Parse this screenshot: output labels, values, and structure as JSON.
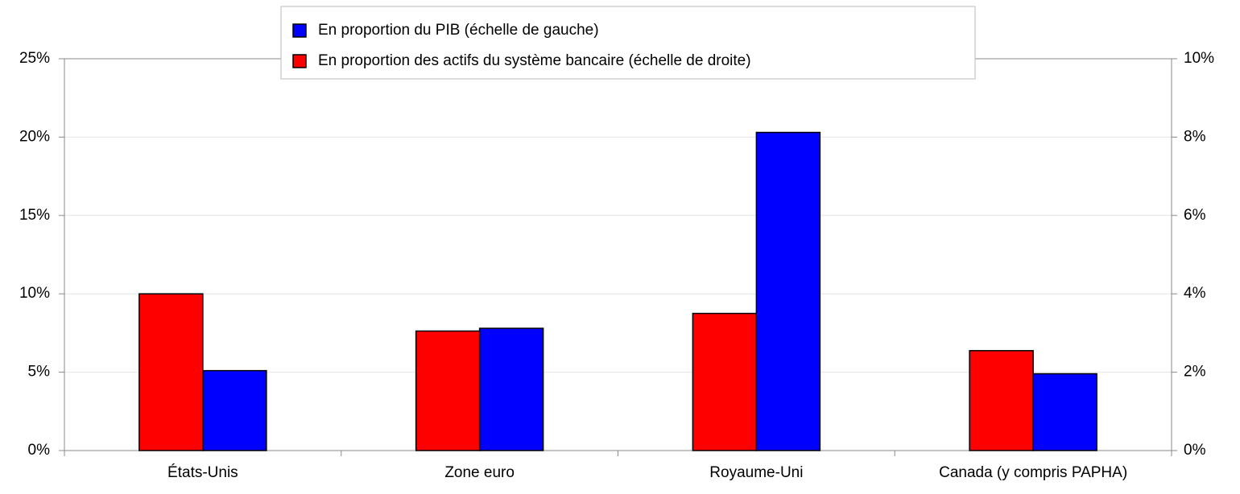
{
  "chart_data": {
    "type": "bar",
    "categories": [
      "États-Unis",
      "Zone euro",
      "Royaume-Uni",
      "Canada (y compris PAPHA)"
    ],
    "series": [
      {
        "name": "En proportion du PIB (échelle de gauche)",
        "color": "#0000ff",
        "values": [
          5.1,
          7.8,
          20.3,
          4.9
        ]
      },
      {
        "name": "En proportion des actifs du système bancaire (échelle de droite)",
        "color": "#ff0000",
        "axis": "y2",
        "values": [
          4.0,
          3.05,
          3.5,
          2.55
        ]
      }
    ],
    "ylim": [
      0,
      25
    ],
    "yticks": [
      {
        "value": 0,
        "label": "0%"
      },
      {
        "value": 5,
        "label": "5%"
      },
      {
        "value": 10,
        "label": "10%"
      },
      {
        "value": 15,
        "label": "15%"
      },
      {
        "value": 20,
        "label": "20%"
      },
      {
        "value": 25,
        "label": "25%"
      }
    ],
    "y2lim": [
      0,
      10
    ],
    "y2ticks": [
      {
        "value": 0,
        "label": "0%"
      },
      {
        "value": 2,
        "label": "2%"
      },
      {
        "value": 4,
        "label": "4%"
      },
      {
        "value": 6,
        "label": "6%"
      },
      {
        "value": 8,
        "label": "8%"
      },
      {
        "value": 10,
        "label": "10%"
      }
    ],
    "grid": true,
    "legend": "top"
  }
}
